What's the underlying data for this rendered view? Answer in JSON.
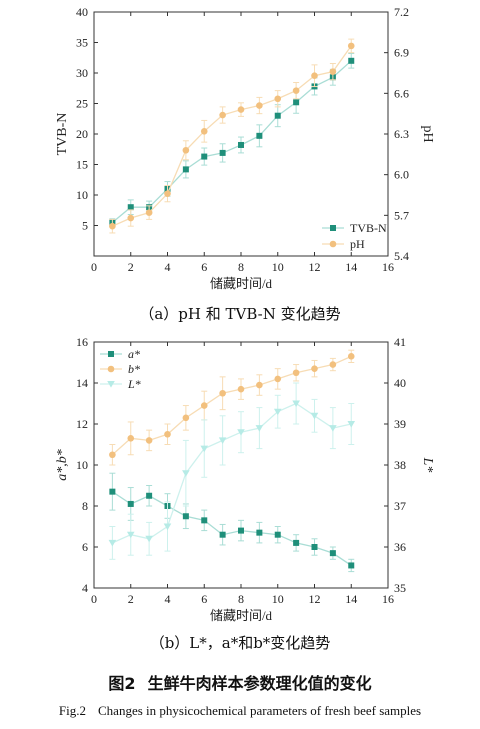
{
  "chart_data": [
    {
      "type": "line",
      "panel": "a",
      "xlabel": "储藏时间/d",
      "ylabel_left": "TVB-N",
      "ylabel_right": "pH",
      "x_ticks": [
        "0",
        "2",
        "4",
        "6",
        "8",
        "10",
        "12",
        "14",
        "16"
      ],
      "y_left_ticks": [
        "5",
        "10",
        "15",
        "20",
        "25",
        "30",
        "35",
        "40"
      ],
      "y_right_ticks": [
        "5.4",
        "5.7",
        "6.0",
        "6.3",
        "6.6",
        "6.9",
        "7.2"
      ],
      "xlim": [
        0,
        16
      ],
      "ylim_left": [
        0,
        40
      ],
      "ylim_right": [
        5.4,
        7.2
      ],
      "legend_position": "bottom-right",
      "series": [
        {
          "name": "TVB-N",
          "axis": "left",
          "marker": "square",
          "color": "#1f8f7a",
          "line_color": "#a9ddd5",
          "x": [
            1,
            2,
            3,
            4,
            5,
            6,
            7,
            8,
            9,
            10,
            11,
            12,
            13,
            14
          ],
          "values": [
            5.5,
            8.0,
            8.0,
            11.0,
            14.2,
            16.3,
            16.9,
            18.2,
            19.7,
            23.0,
            25.2,
            27.8,
            29.3,
            32.0
          ],
          "errors": [
            0.6,
            1.2,
            1.0,
            1.2,
            1.4,
            1.4,
            1.5,
            1.3,
            1.8,
            1.8,
            1.8,
            1.4,
            1.3,
            1.2
          ]
        },
        {
          "name": "pH",
          "axis": "right",
          "marker": "circle",
          "color": "#f2c07e",
          "line_color": "#f7dcb4",
          "x": [
            1,
            2,
            3,
            4,
            5,
            6,
            7,
            8,
            9,
            10,
            11,
            12,
            13,
            14
          ],
          "values": [
            5.62,
            5.68,
            5.72,
            5.86,
            6.18,
            6.32,
            6.44,
            6.48,
            6.51,
            6.56,
            6.62,
            6.73,
            6.76,
            6.95
          ],
          "errors": [
            0.05,
            0.06,
            0.05,
            0.06,
            0.07,
            0.08,
            0.06,
            0.05,
            0.06,
            0.06,
            0.06,
            0.08,
            0.06,
            0.05
          ]
        }
      ]
    },
    {
      "type": "line",
      "panel": "b",
      "xlabel": "储藏时间/d",
      "ylabel_left": "a*,b*",
      "ylabel_right": "L*",
      "x_ticks": [
        "0",
        "2",
        "4",
        "6",
        "8",
        "10",
        "12",
        "14",
        "16"
      ],
      "y_left_ticks": [
        "4",
        "6",
        "8",
        "10",
        "12",
        "14",
        "16"
      ],
      "y_right_ticks": [
        "35",
        "36",
        "37",
        "38",
        "39",
        "40",
        "41"
      ],
      "xlim": [
        0,
        16
      ],
      "ylim_left": [
        4,
        16
      ],
      "ylim_right": [
        35,
        41
      ],
      "legend_position": "top-left",
      "series": [
        {
          "name": "a*",
          "axis": "left",
          "marker": "square",
          "color": "#1f8f7a",
          "line_color": "#a9ddd5",
          "x": [
            1,
            2,
            3,
            4,
            5,
            6,
            7,
            8,
            9,
            10,
            11,
            12,
            13,
            14
          ],
          "values": [
            8.7,
            8.1,
            8.5,
            8.0,
            7.5,
            7.3,
            6.6,
            6.8,
            6.7,
            6.6,
            6.2,
            6.0,
            5.7,
            5.1
          ],
          "errors": [
            0.9,
            0.8,
            0.5,
            0.6,
            0.6,
            0.5,
            0.5,
            0.5,
            0.5,
            0.4,
            0.4,
            0.4,
            0.3,
            0.3
          ]
        },
        {
          "name": "b*",
          "axis": "left",
          "marker": "circle",
          "color": "#f2c07e",
          "line_color": "#f7dcb4",
          "x": [
            1,
            2,
            3,
            4,
            5,
            6,
            7,
            8,
            9,
            10,
            11,
            12,
            13,
            14
          ],
          "values": [
            10.5,
            11.3,
            11.2,
            11.5,
            12.3,
            12.9,
            13.5,
            13.7,
            13.9,
            14.2,
            14.5,
            14.7,
            14.9,
            15.3
          ],
          "errors": [
            0.5,
            0.8,
            0.5,
            0.5,
            0.6,
            0.7,
            0.8,
            0.5,
            0.5,
            0.5,
            0.4,
            0.4,
            0.3,
            0.3
          ]
        },
        {
          "name": "L*",
          "axis": "right",
          "marker": "triangle-down",
          "color": "#b6ebe6",
          "line_color": "#cdf1ed",
          "x": [
            1,
            2,
            3,
            4,
            5,
            6,
            7,
            8,
            9,
            10,
            11,
            12,
            13,
            14
          ],
          "values": [
            36.1,
            36.3,
            36.2,
            36.5,
            37.8,
            38.4,
            38.6,
            38.8,
            38.9,
            39.3,
            39.5,
            39.2,
            38.9,
            39.0
          ],
          "errors": [
            0.4,
            0.5,
            0.4,
            0.6,
            0.8,
            0.7,
            0.6,
            0.5,
            0.5,
            0.4,
            0.5,
            0.4,
            0.5,
            0.5
          ]
        }
      ]
    }
  ],
  "captions": {
    "a": "（a）pH 和 TVB-N 变化趋势",
    "b": "（b）L*，a*和b*变化趋势"
  },
  "figure": {
    "label_cn": "图2",
    "title_cn": "生鲜牛肉样本参数理化值的变化",
    "label_en": "Fig.2",
    "title_en": "Changes in physicochemical parameters of fresh beef samples"
  }
}
